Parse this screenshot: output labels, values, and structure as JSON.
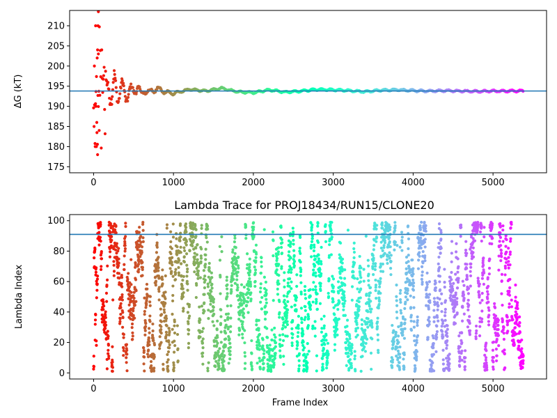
{
  "chart_data": [
    {
      "type": "scatter",
      "title": "",
      "xlabel": "",
      "ylabel": "ΔG (kT)",
      "xlim": [
        -300,
        5670
      ],
      "ylim": [
        173.5,
        213.8
      ],
      "xticks": [
        0,
        1000,
        2000,
        3000,
        4000,
        5000
      ],
      "yticks": [
        175,
        180,
        185,
        190,
        195,
        200,
        205,
        210
      ],
      "grid": false,
      "colormap": "rainbow (red → violet by frame index)",
      "hline": 193.8,
      "hline_color": "#1f77b4",
      "series": [
        {
          "x": [
            10,
            20,
            30,
            40,
            50,
            60,
            70,
            80,
            90,
            100,
            120,
            140,
            160,
            180,
            200,
            230,
            260,
            300,
            350,
            400,
            450,
            500,
            550,
            600,
            650,
            700,
            800,
            900,
            1000,
            1200,
            1400,
            1600,
            1800,
            2000,
            2200,
            2400,
            2600,
            2800,
            3000,
            3200,
            3400,
            3600,
            3800,
            4000,
            4200,
            4400,
            4600,
            4800,
            5000,
            5200,
            5380
          ],
          "y": [
            200,
            190,
            180,
            210,
            186,
            204,
            213.5,
            196,
            199,
            184,
            190,
            196,
            194,
            198,
            195,
            191,
            196,
            193,
            195,
            192,
            194.5,
            193,
            195.5,
            192.5,
            194.2,
            193.4,
            194.5,
            193.5,
            193.2,
            194.2,
            193.8,
            194.5,
            193.6,
            193.4,
            194.1,
            193.5,
            193.8,
            194.2,
            194.1,
            193.9,
            193.6,
            194,
            194.1,
            193.9,
            193.8,
            193.9,
            193.8,
            193.7,
            193.8,
            193.8,
            193.8
          ]
        }
      ]
    },
    {
      "type": "scatter",
      "title": "Lambda Trace for PROJ18434/RUN15/CLONE20",
      "xlabel": "Frame Index",
      "ylabel": "Lambda Index",
      "xlim": [
        -300,
        5670
      ],
      "ylim": [
        -4,
        104
      ],
      "xticks": [
        0,
        1000,
        2000,
        3000,
        4000,
        5000
      ],
      "yticks": [
        0,
        20,
        40,
        60,
        80,
        100
      ],
      "grid": false,
      "colormap": "rainbow (red → violet by frame index)",
      "hline": 91,
      "hline_color": "#1f77b4",
      "series": [
        {
          "x": [
            0,
            5380
          ],
          "y": [
            1,
            99
          ]
        }
      ],
      "point_count_estimate": 5400
    }
  ]
}
